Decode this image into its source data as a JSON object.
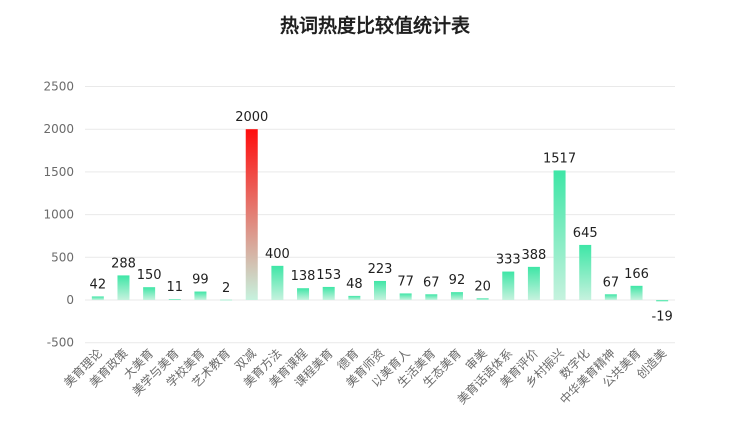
{
  "chart_data": {
    "type": "bar",
    "title": "热词热度比较值统计表",
    "categories": [
      "美育理论",
      "美育政策",
      "大美育",
      "美学与美育",
      "学校美育",
      "艺术教育",
      "双减",
      "美育方法",
      "美育课程",
      "课程美育",
      "德育",
      "美育师资",
      "以美育人",
      "生活美育",
      "生态美育",
      "审美",
      "美育话语体系",
      "美育评价",
      "乡村振兴",
      "数字化",
      "中华美育精神",
      "公共美育",
      "创造美"
    ],
    "values": [
      42,
      288,
      150,
      11,
      99,
      2,
      2000,
      400,
      138,
      153,
      48,
      223,
      77,
      67,
      92,
      20,
      333,
      388,
      1517,
      645,
      67,
      166,
      -19
    ],
    "ylim": [
      -500,
      2500
    ],
    "yticks": [
      -500,
      0,
      500,
      1000,
      1500,
      2000,
      2500
    ],
    "xlabel": "",
    "ylabel": "",
    "grid": true,
    "legend": false,
    "data_labels": true,
    "bar_colors": [
      "#3ee6a6",
      "#3ee6a6",
      "#3ee6a6",
      "#3ee6a6",
      "#3ee6a6",
      "#3ee6a6",
      "#ff0d0d",
      "#3ee6a6",
      "#3ee6a6",
      "#3ee6a6",
      "#3ee6a6",
      "#3ee6a6",
      "#3ee6a6",
      "#3ee6a6",
      "#3ee6a6",
      "#3ee6a6",
      "#3ee6a6",
      "#3ee6a6",
      "#3ee6a6",
      "#3ee6a6",
      "#3ee6a6",
      "#3ee6a6",
      "#3ee6a6"
    ],
    "bar_fade_color": "#c6f2de"
  }
}
